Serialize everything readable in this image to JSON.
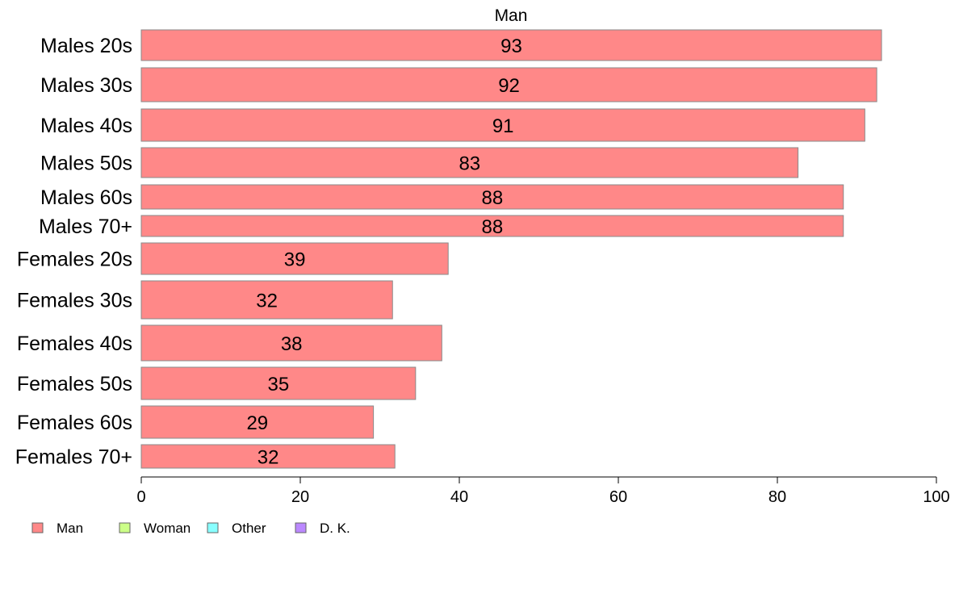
{
  "chart_data": {
    "type": "bar",
    "orientation": "horizontal",
    "title": "Man",
    "xlabel": "",
    "ylabel": "",
    "xlim": [
      0,
      100
    ],
    "xticks": [
      0,
      20,
      40,
      60,
      80,
      100
    ],
    "grid": false,
    "legend_placement": "bottom-left",
    "categories": [
      "Males 20s",
      "Males 30s",
      "Males 40s",
      "Males 50s",
      "Males 60s",
      "Males 70+",
      "Females 20s",
      "Females 30s",
      "Females 40s",
      "Females 50s",
      "Females 60s",
      "Females 70+"
    ],
    "series": [
      {
        "name": "Man",
        "color": "#ff8888",
        "values": [
          93.1,
          92.5,
          91,
          82.6,
          88.3,
          88.3,
          38.6,
          31.6,
          37.8,
          34.5,
          29.2,
          31.9
        ],
        "labels": [
          "93",
          "92",
          "91",
          "83",
          "88",
          "88",
          "39",
          "32",
          "38",
          "35",
          "29",
          "32"
        ]
      }
    ],
    "legend": [
      {
        "label": "Man",
        "color": "#ff8888"
      },
      {
        "label": "Woman",
        "color": "#ccff88"
      },
      {
        "label": "Other",
        "color": "#88ffff"
      },
      {
        "label": "D. K.",
        "color": "#bb88ff"
      }
    ]
  }
}
